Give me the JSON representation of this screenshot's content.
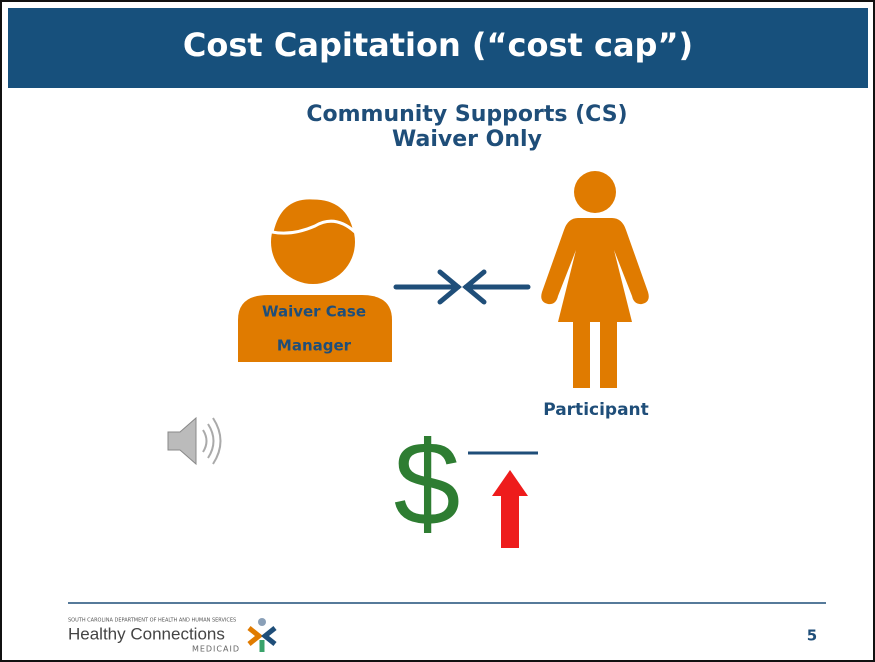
{
  "header": {
    "title": "Cost Capitation (“cost cap”)"
  },
  "subtitle": [
    "Community Supports (CS)",
    "Waiver Only"
  ],
  "case_manager": {
    "label": [
      "Waiver Case",
      "Manager"
    ]
  },
  "participant": {
    "label": "Participant"
  },
  "money": {
    "symbol": "$"
  },
  "footer": {
    "agency": "SOUTH CAROLINA DEPARTMENT OF HEALTH AND HUMAN SERVICES",
    "brand": "Healthy Connections",
    "program": "MEDICAID",
    "page": "5"
  }
}
